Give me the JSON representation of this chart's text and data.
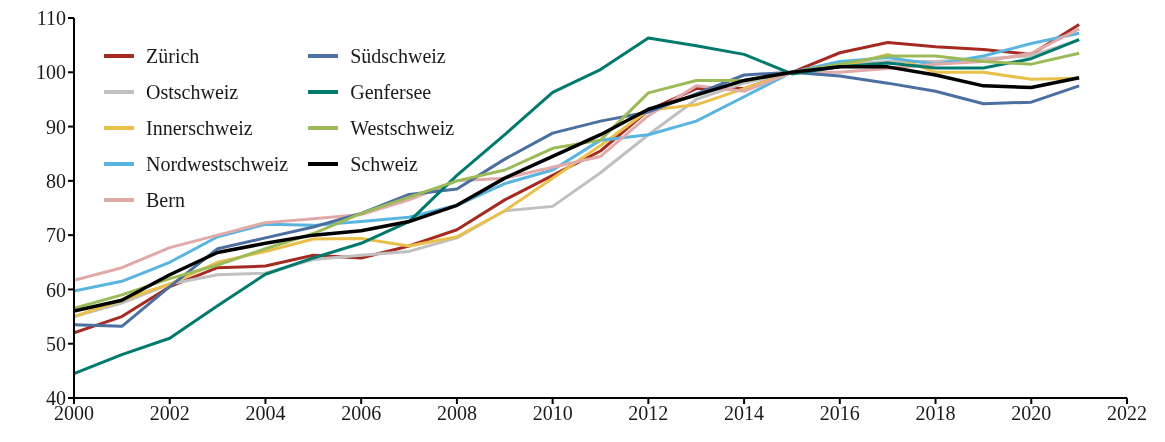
{
  "chart_data": {
    "type": "line",
    "x": [
      2000,
      2001,
      2002,
      2003,
      2004,
      2005,
      2006,
      2007,
      2008,
      2009,
      2010,
      2011,
      2012,
      2013,
      2014,
      2015,
      2016,
      2017,
      2018,
      2019,
      2020,
      2021
    ],
    "xlim": [
      2000,
      2022
    ],
    "xticks": [
      2000,
      2002,
      2004,
      2006,
      2008,
      2010,
      2012,
      2014,
      2016,
      2018,
      2020,
      2022
    ],
    "ylim": [
      40,
      110
    ],
    "yticks": [
      40,
      50,
      60,
      70,
      80,
      90,
      100,
      110
    ],
    "grid": false,
    "legend": "top left",
    "marker": "none",
    "line_style": "solid",
    "series": [
      {
        "name": "Zürich",
        "color": "#a52a22",
        "values": [
          52,
          55,
          60.5,
          64,
          64.3,
          66.3,
          65.8,
          68,
          71,
          76.5,
          81,
          85.5,
          93,
          97,
          97,
          100,
          103.6,
          105.5,
          104.7,
          104.2,
          103.3,
          108.8
        ]
      },
      {
        "name": "Ostschweiz",
        "color": "#c0c0c0",
        "values": [
          55,
          57.5,
          61,
          62.7,
          63,
          65.5,
          66.3,
          67,
          69.5,
          74.5,
          75.3,
          81.5,
          88.5,
          95,
          98,
          100,
          101.5,
          102,
          102,
          102.5,
          103,
          106
        ]
      },
      {
        "name": "Innerschweiz",
        "color": "#e8c04a",
        "values": [
          55,
          58,
          61,
          65,
          67,
          69.3,
          69.4,
          68,
          69.7,
          74.5,
          80.5,
          86.5,
          93,
          94,
          97,
          100,
          101,
          103.3,
          100,
          100,
          98.7,
          98.9
        ]
      },
      {
        "name": "Nordwestschweiz",
        "color": "#5ab4e0",
        "values": [
          59.7,
          61.5,
          65,
          69.7,
          72,
          71.8,
          72.5,
          73.3,
          75.5,
          79.5,
          82,
          87.5,
          88.5,
          91,
          95.5,
          100,
          102,
          102.7,
          101.5,
          103,
          105.3,
          107.2
        ]
      },
      {
        "name": "Bern",
        "color": "#e0aaa8",
        "values": [
          61.7,
          64,
          67.7,
          70,
          72.3,
          73,
          73.8,
          76.5,
          80,
          80.5,
          82.5,
          84.5,
          92,
          97.5,
          96.5,
          100,
          100,
          100.7,
          101.5,
          102,
          103.5,
          108
        ]
      },
      {
        "name": "Südschweiz",
        "color": "#4a6fa0",
        "values": [
          53.5,
          53.2,
          60.5,
          67.5,
          69.5,
          71.5,
          74,
          77.5,
          78.5,
          84,
          88.8,
          91,
          92.7,
          96,
          99.5,
          100,
          99.3,
          98,
          96.5,
          94.2,
          94.5,
          97.5
        ]
      },
      {
        "name": "Genfersee",
        "color": "#007a6c",
        "values": [
          44.5,
          48,
          51,
          57,
          62.8,
          65.8,
          68.5,
          72.5,
          81,
          88.5,
          96.3,
          100.5,
          106.3,
          104.9,
          103.3,
          99.7,
          101,
          101.7,
          100.8,
          100.8,
          102.5,
          106
        ]
      },
      {
        "name": "Westschweiz",
        "color": "#9bbb59",
        "values": [
          56.5,
          59,
          62,
          64.5,
          67.5,
          70.3,
          74,
          77,
          80,
          82,
          86,
          87.5,
          96.2,
          98.5,
          98.5,
          100,
          101.5,
          103,
          103,
          102,
          101.5,
          103.5
        ]
      },
      {
        "name": "Schweiz",
        "color": "#000000",
        "values": [
          56,
          58,
          62.7,
          66.8,
          68.5,
          70,
          70.8,
          72.5,
          75.5,
          80.5,
          84.5,
          88.5,
          93.2,
          95.8,
          98.5,
          100,
          101,
          101,
          99.5,
          97.5,
          97.2,
          99
        ]
      }
    ]
  }
}
